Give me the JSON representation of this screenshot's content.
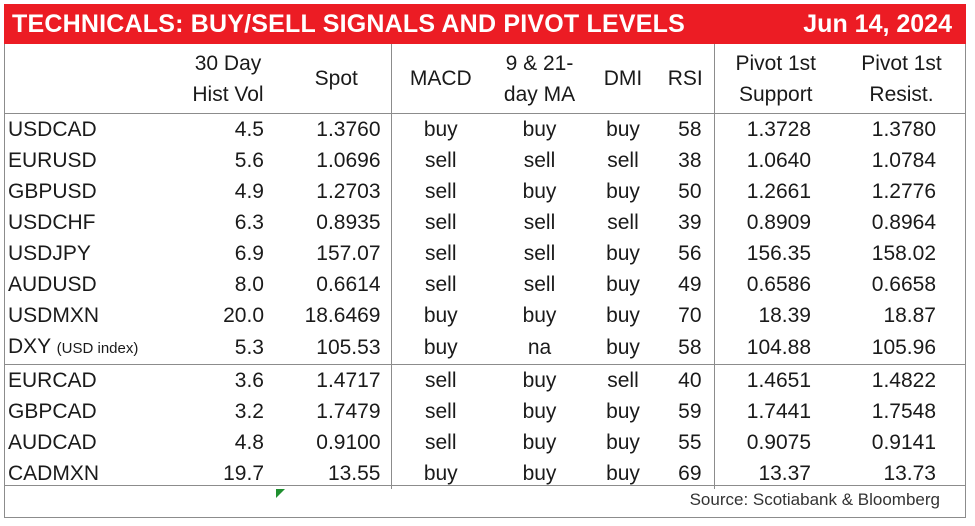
{
  "title": "TECHNICALS: BUY/SELL SIGNALS AND PIVOT LEVELS",
  "date": "Jun 14, 2024",
  "headers": {
    "vol_1": "30 Day",
    "vol_2": "Hist Vol",
    "spot": "Spot",
    "macd": "MACD",
    "ma_1": "9 & 21-",
    "ma_2": "day MA",
    "dmi": "DMI",
    "rsi": "RSI",
    "support_1": "Pivot 1st",
    "support_2": "Support",
    "resist_1": "Pivot 1st",
    "resist_2": "Resist."
  },
  "rows": [
    {
      "name": "USDCAD",
      "vol": "4.5",
      "spot": "1.3760",
      "macd": "buy",
      "ma": "buy",
      "dmi": "buy",
      "rsi": "58",
      "support": "1.3728",
      "resist": "1.3780"
    },
    {
      "name": "EURUSD",
      "vol": "5.6",
      "spot": "1.0696",
      "macd": "sell",
      "ma": "sell",
      "dmi": "sell",
      "rsi": "38",
      "support": "1.0640",
      "resist": "1.0784"
    },
    {
      "name": "GBPUSD",
      "vol": "4.9",
      "spot": "1.2703",
      "macd": "sell",
      "ma": "buy",
      "dmi": "buy",
      "rsi": "50",
      "support": "1.2661",
      "resist": "1.2776"
    },
    {
      "name": "USDCHF",
      "vol": "6.3",
      "spot": "0.8935",
      "macd": "sell",
      "ma": "sell",
      "dmi": "sell",
      "rsi": "39",
      "support": "0.8909",
      "resist": "0.8964"
    },
    {
      "name": "USDJPY",
      "vol": "6.9",
      "spot": "157.07",
      "macd": "sell",
      "ma": "sell",
      "dmi": "buy",
      "rsi": "56",
      "support": "156.35",
      "resist": "158.02"
    },
    {
      "name": "AUDUSD",
      "vol": "8.0",
      "spot": "0.6614",
      "macd": "sell",
      "ma": "sell",
      "dmi": "buy",
      "rsi": "49",
      "support": "0.6586",
      "resist": "0.6658"
    },
    {
      "name": "USDMXN",
      "vol": "20.0",
      "spot": "18.6469",
      "macd": "buy",
      "ma": "buy",
      "dmi": "buy",
      "rsi": "70",
      "support": "18.39",
      "resist": "18.87"
    },
    {
      "name": "DXY",
      "note": "(USD index)",
      "vol": "5.3",
      "spot": "105.53",
      "macd": "buy",
      "ma": "na",
      "dmi": "buy",
      "rsi": "58",
      "support": "104.88",
      "resist": "105.96"
    },
    {
      "name": "EURCAD",
      "vol": "3.6",
      "spot": "1.4717",
      "macd": "sell",
      "ma": "buy",
      "dmi": "sell",
      "rsi": "40",
      "support": "1.4651",
      "resist": "1.4822"
    },
    {
      "name": "GBPCAD",
      "vol": "3.2",
      "spot": "1.7479",
      "macd": "sell",
      "ma": "buy",
      "dmi": "buy",
      "rsi": "59",
      "support": "1.7441",
      "resist": "1.7548"
    },
    {
      "name": "AUDCAD",
      "vol": "4.8",
      "spot": "0.9100",
      "macd": "sell",
      "ma": "buy",
      "dmi": "buy",
      "rsi": "55",
      "support": "0.9075",
      "resist": "0.9141"
    },
    {
      "name": "CADMXN",
      "vol": "19.7",
      "spot": "13.55",
      "macd": "buy",
      "ma": "buy",
      "dmi": "buy",
      "rsi": "69",
      "support": "13.37",
      "resist": "13.73"
    }
  ],
  "source": "Source: Scotiabank & Bloomberg",
  "colors": {
    "title_bar": "#ec1c24",
    "title_text": "#ffffff",
    "grid": "#8c8c8c",
    "marker": "#1f8f2f"
  }
}
